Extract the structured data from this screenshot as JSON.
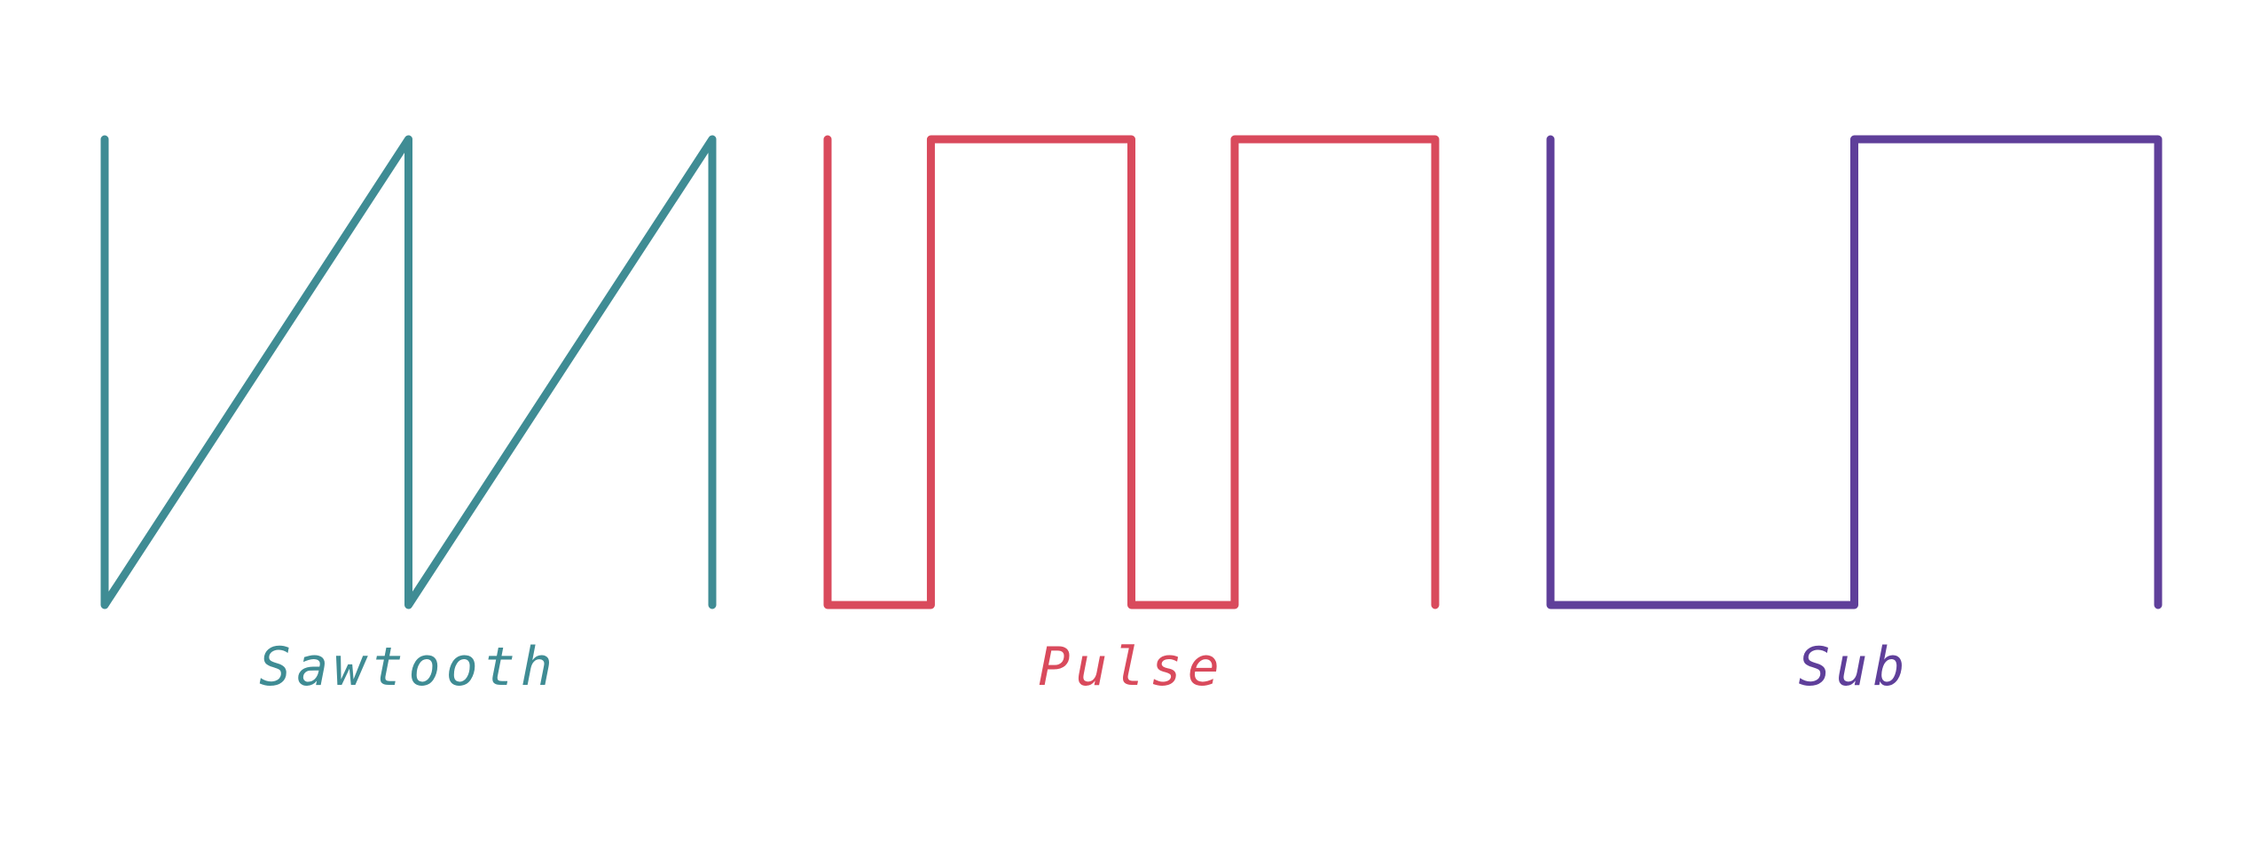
{
  "waveforms": [
    {
      "id": "sawtooth",
      "label": "Sawtooth",
      "color": "#3f8c94",
      "shape": "sawtooth",
      "cycles": 2
    },
    {
      "id": "pulse",
      "label": "Pulse",
      "color": "#d94a5c",
      "shape": "pulse",
      "cycles": 2,
      "duty_cycle_high": 0.66
    },
    {
      "id": "sub",
      "label": "Sub",
      "color": "#5f3f9a",
      "shape": "square",
      "cycles": 1,
      "duty_cycle_high": 0.5
    }
  ]
}
